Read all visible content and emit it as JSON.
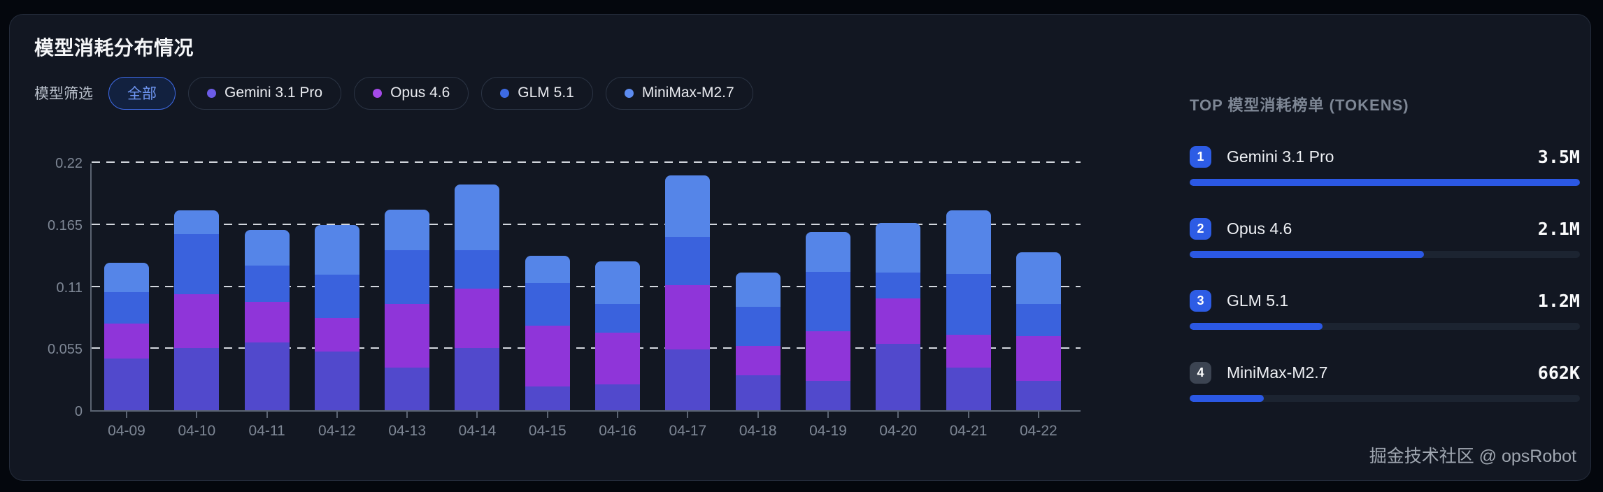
{
  "card": {
    "title": "模型消耗分布情况",
    "footer": "掘金技术社区 @ opsRobot"
  },
  "filter": {
    "label": "模型筛选",
    "all_chip": "全部",
    "chips": [
      {
        "label": "Gemini 3.1 Pro",
        "dot_color": "#6c5ce7"
      },
      {
        "label": "Opus 4.6",
        "dot_color": "#a44ae8"
      },
      {
        "label": "GLM 5.1",
        "dot_color": "#3d6be4"
      },
      {
        "label": "MiniMax-M2.7",
        "dot_color": "#5d8cf0"
      }
    ]
  },
  "chart_data": {
    "type": "bar",
    "stacked": true,
    "categories": [
      "04-09",
      "04-10",
      "04-11",
      "04-12",
      "04-13",
      "04-14",
      "04-15",
      "04-16",
      "04-17",
      "04-18",
      "04-19",
      "04-20",
      "04-21",
      "04-22"
    ],
    "series": [
      {
        "name": "Gemini 3.1 Pro",
        "color": "#5149cc",
        "values": [
          0.046,
          0.055,
          0.06,
          0.052,
          0.038,
          0.055,
          0.021,
          0.023,
          0.054,
          0.031,
          0.026,
          0.059,
          0.038,
          0.026
        ]
      },
      {
        "name": "Opus 4.6",
        "color": "#8f35d9",
        "values": [
          0.031,
          0.048,
          0.036,
          0.03,
          0.056,
          0.053,
          0.054,
          0.046,
          0.057,
          0.026,
          0.044,
          0.04,
          0.029,
          0.04
        ]
      },
      {
        "name": "GLM 5.1",
        "color": "#3a62dd",
        "values": [
          0.028,
          0.053,
          0.032,
          0.038,
          0.048,
          0.034,
          0.038,
          0.025,
          0.043,
          0.035,
          0.053,
          0.023,
          0.054,
          0.028
        ]
      },
      {
        "name": "MiniMax-M2.7",
        "color": "#5585e8",
        "values": [
          0.026,
          0.021,
          0.032,
          0.044,
          0.036,
          0.058,
          0.024,
          0.038,
          0.054,
          0.03,
          0.035,
          0.044,
          0.056,
          0.046
        ]
      }
    ],
    "title": "模型消耗分布情况",
    "xlabel": "",
    "ylabel": "",
    "ylim": [
      0,
      0.22
    ],
    "yticks": [
      0,
      0.055,
      0.11,
      0.165,
      0.22
    ],
    "ytick_labels": [
      "0",
      "0.055",
      "0.11",
      "0.165",
      "0.22"
    ],
    "grid": "horizontal dashed white",
    "legend_position": "top chips"
  },
  "top_list": {
    "heading": "TOP 模型消耗榜单 (TOKENS)",
    "items": [
      {
        "rank": "1",
        "name": "Gemini 3.1 Pro",
        "value": "3.5M",
        "percent": 100,
        "badge_color": "#2d5ce5"
      },
      {
        "rank": "2",
        "name": "Opus 4.6",
        "value": "2.1M",
        "percent": 60,
        "badge_color": "#2d5ce5"
      },
      {
        "rank": "3",
        "name": "GLM 5.1",
        "value": "1.2M",
        "percent": 34,
        "badge_color": "#2d5ce5"
      },
      {
        "rank": "4",
        "name": "MiniMax-M2.7",
        "value": "662K",
        "percent": 19,
        "badge_color": "#3c4452"
      }
    ],
    "bar_fill_color": "#2b58e4",
    "bar_track_color": "#1c2431"
  },
  "colors": {
    "page_bg": "#04070d",
    "card_bg": "#121722",
    "card_border": "#242c3b",
    "axis": "#5b6472",
    "tick_text": "#7e8795",
    "grid_dash": "#e4e8ee",
    "active_chip_border": "#3e6ae6"
  }
}
